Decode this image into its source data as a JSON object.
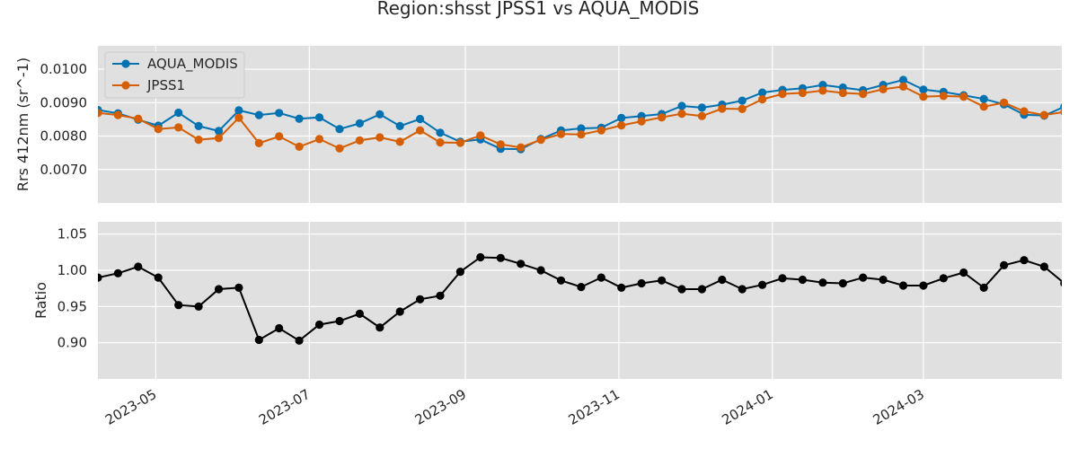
{
  "chart_data": {
    "type": "line",
    "title": "Region:shsst JPSS1 vs AQUA_MODIS",
    "x_tick_labels": [
      "2023-05",
      "2023-07",
      "2023-09",
      "2023-11",
      "2024-01",
      "2024-03"
    ],
    "x_tick_dates": [
      "2023-05-01",
      "2023-07-01",
      "2023-09-01",
      "2023-11-01",
      "2024-01-01",
      "2024-03-01"
    ],
    "xlim": [
      "2023-04-08",
      "2024-04-25"
    ],
    "x": [
      "2023-04-08",
      "2023-04-16",
      "2023-04-24",
      "2023-05-02",
      "2023-05-10",
      "2023-05-18",
      "2023-05-26",
      "2023-06-03",
      "2023-06-11",
      "2023-06-19",
      "2023-06-27",
      "2023-07-05",
      "2023-07-13",
      "2023-07-21",
      "2023-07-29",
      "2023-08-06",
      "2023-08-14",
      "2023-08-22",
      "2023-08-30",
      "2023-09-07",
      "2023-09-15",
      "2023-09-23",
      "2023-10-01",
      "2023-10-09",
      "2023-10-17",
      "2023-10-25",
      "2023-11-02",
      "2023-11-10",
      "2023-11-18",
      "2023-11-26",
      "2023-12-04",
      "2023-12-12",
      "2023-12-20",
      "2023-12-28",
      "2024-01-05",
      "2024-01-13",
      "2024-01-21",
      "2024-01-29",
      "2024-02-06",
      "2024-02-14",
      "2024-02-22",
      "2024-03-01",
      "2024-03-09",
      "2024-03-17",
      "2024-03-25",
      "2024-04-02",
      "2024-04-10",
      "2024-04-18",
      "2024-04-26"
    ],
    "charts": [
      {
        "ylabel": "Rrs 412nm (sr^-1)",
        "ylim": [
          0.006,
          0.0107
        ],
        "yticks": [
          0.007,
          0.008,
          0.009,
          0.01
        ],
        "ytick_labels": [
          "0.0070",
          "0.0080",
          "0.0090",
          "0.0100"
        ],
        "legend": "top-left",
        "series": [
          {
            "name": "AQUA_MODIS",
            "color": "#0072b2",
            "values": [
              0.00878,
              0.00868,
              0.00849,
              0.00831,
              0.0087,
              0.0083,
              0.00815,
              0.00877,
              0.00863,
              0.00869,
              0.00852,
              0.00856,
              0.00821,
              0.00838,
              0.00865,
              0.0083,
              0.00851,
              0.0081,
              0.00783,
              0.0079,
              0.00762,
              0.00761,
              0.00791,
              0.00817,
              0.00823,
              0.00825,
              0.00854,
              0.0086,
              0.00866,
              0.0089,
              0.00885,
              0.00894,
              0.00906,
              0.0093,
              0.00938,
              0.00943,
              0.00953,
              0.00945,
              0.00937,
              0.00953,
              0.00968,
              0.00939,
              0.00932,
              0.00922,
              0.00911,
              0.00895,
              0.00864,
              0.00861,
              0.00888
            ]
          },
          {
            "name": "JPSS1",
            "color": "#d55e00",
            "values": [
              0.00869,
              0.00863,
              0.00852,
              0.00821,
              0.00826,
              0.00789,
              0.00794,
              0.00855,
              0.00779,
              0.00799,
              0.00768,
              0.00791,
              0.00763,
              0.00787,
              0.00796,
              0.00783,
              0.00817,
              0.00781,
              0.0078,
              0.00802,
              0.00775,
              0.00766,
              0.00789,
              0.00806,
              0.00805,
              0.00817,
              0.00832,
              0.00844,
              0.00856,
              0.00867,
              0.0086,
              0.00882,
              0.00881,
              0.0091,
              0.00926,
              0.00929,
              0.00936,
              0.00929,
              0.00926,
              0.0094,
              0.00948,
              0.00918,
              0.0092,
              0.00918,
              0.00888,
              0.009,
              0.00874,
              0.00863,
              0.00872
            ]
          }
        ]
      },
      {
        "ylabel": "Ratio",
        "ylim": [
          0.85,
          1.067
        ],
        "yticks": [
          0.9,
          0.95,
          1.0,
          1.05
        ],
        "ytick_labels": [
          "0.90",
          "0.95",
          "1.00",
          "1.05"
        ],
        "series": [
          {
            "color": "#000000",
            "values": [
              0.99,
              0.996,
              1.005,
              0.99,
              0.952,
              0.95,
              0.974,
              0.976,
              0.904,
              0.92,
              0.903,
              0.925,
              0.93,
              0.94,
              0.921,
              0.943,
              0.96,
              0.965,
              0.998,
              1.018,
              1.017,
              1.009,
              1.0,
              0.986,
              0.977,
              0.99,
              0.976,
              0.982,
              0.986,
              0.974,
              0.974,
              0.987,
              0.974,
              0.98,
              0.989,
              0.987,
              0.983,
              0.982,
              0.99,
              0.987,
              0.979,
              0.979,
              0.989,
              0.997,
              0.976,
              1.007,
              1.014,
              1.005,
              0.982
            ]
          }
        ]
      }
    ]
  }
}
